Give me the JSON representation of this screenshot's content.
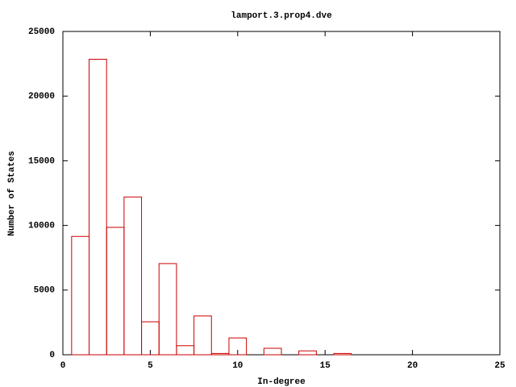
{
  "chart_data": {
    "type": "histogram",
    "title": "lamport.3.prop4.dve",
    "x_label": "In-degree",
    "y_label": "Number of States",
    "bins": [
      0.5,
      1.5,
      2.5,
      3.5,
      4.5,
      5.5,
      6.5,
      7.5,
      8.5,
      9.5,
      10.5,
      11.5,
      12.5,
      13.5,
      14.5,
      15.5,
      16.5
    ],
    "values": [
      9150,
      22850,
      9850,
      12200,
      2550,
      7050,
      700,
      3000,
      100,
      1300,
      0,
      500,
      0,
      300,
      0,
      100
    ],
    "color": "#cc0000",
    "xlim": [
      0,
      25
    ],
    "xticks": [
      0,
      5,
      10,
      15,
      20,
      25
    ],
    "ylim": [
      0,
      25000
    ],
    "yticks": [
      0,
      5000,
      10000,
      15000,
      20000,
      25000
    ]
  }
}
